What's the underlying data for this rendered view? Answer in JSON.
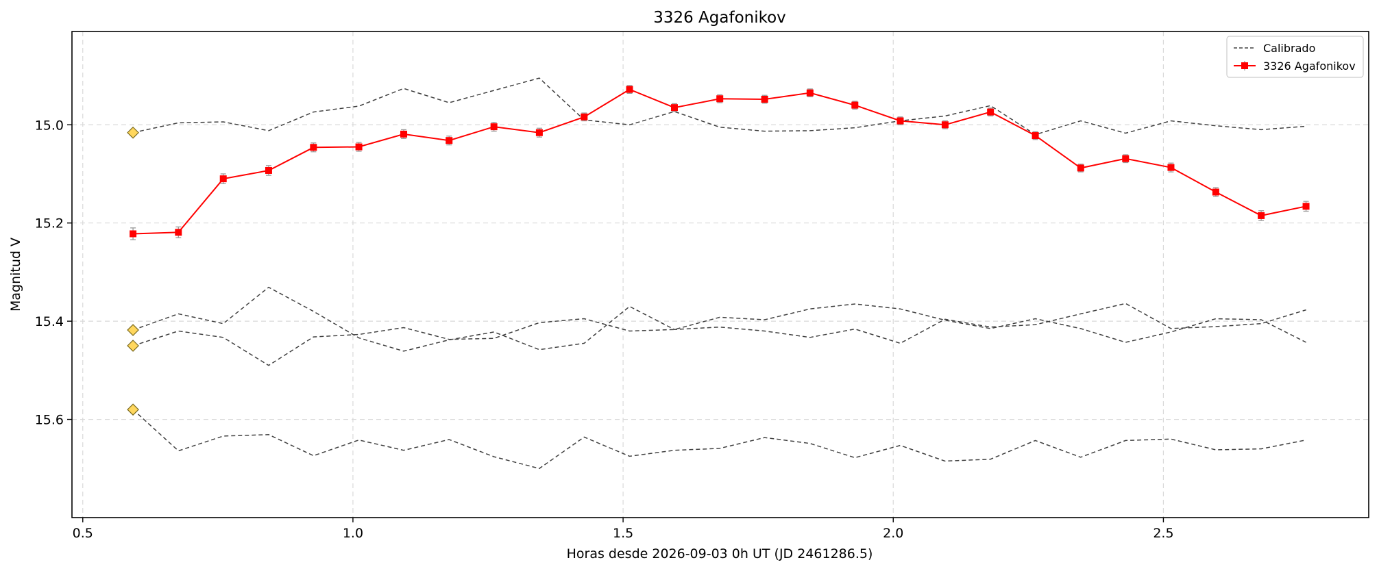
{
  "chart_data": {
    "type": "line",
    "title": "3326 Agafonikov",
    "xlabel": "Horas desde 2026-09-03 0h UT (JD 2461286.5)",
    "ylabel": "Magnitud V",
    "xlim": [
      0.48,
      2.88
    ],
    "ylim": [
      15.8,
      14.81
    ],
    "y_inverted": true,
    "xticks": [
      0.5,
      1.0,
      1.5,
      2.0,
      2.5
    ],
    "xtick_labels": [
      "0.5",
      "1.0",
      "1.5",
      "2.0",
      "2.5"
    ],
    "yticks": [
      15.0,
      15.2,
      15.4,
      15.6
    ],
    "ytick_labels": [
      "15.0",
      "15.2",
      "15.4",
      "15.6"
    ],
    "grid": true,
    "legend_position": "top-right",
    "colors": {
      "target": "#ff0000",
      "calibrated": "#404040",
      "reference_marker": "#ffd75e",
      "errorbar": "#999999"
    },
    "x": [
      0.593,
      0.677,
      0.76,
      0.844,
      0.927,
      1.011,
      1.094,
      1.178,
      1.261,
      1.345,
      1.428,
      1.512,
      1.595,
      1.679,
      1.762,
      1.846,
      1.929,
      2.013,
      2.096,
      2.18,
      2.263,
      2.347,
      2.43,
      2.514,
      2.597,
      2.681,
      2.764
    ],
    "series": [
      {
        "name": "3326 Agafonikov",
        "style": "solid-square-errorbar",
        "values": [
          15.222,
          15.219,
          15.11,
          15.093,
          15.046,
          15.045,
          15.019,
          15.032,
          15.004,
          15.016,
          14.984,
          14.928,
          14.965,
          14.947,
          14.948,
          14.935,
          14.96,
          14.992,
          15.0,
          14.974,
          15.022,
          15.088,
          15.069,
          15.087,
          15.137,
          15.185,
          15.166
        ],
        "errors": [
          0.012,
          0.011,
          0.01,
          0.01,
          0.009,
          0.009,
          0.009,
          0.009,
          0.009,
          0.009,
          0.008,
          0.008,
          0.008,
          0.008,
          0.008,
          0.008,
          0.008,
          0.008,
          0.008,
          0.008,
          0.008,
          0.008,
          0.008,
          0.009,
          0.009,
          0.01,
          0.01
        ]
      },
      {
        "name": "Calibrado",
        "style": "dashed",
        "values": [
          15.016,
          14.996,
          14.994,
          15.012,
          14.974,
          14.962,
          14.926,
          14.955,
          14.93,
          14.905,
          14.99,
          15.0,
          14.973,
          15.005,
          15.013,
          15.012,
          15.006,
          14.992,
          14.982,
          14.961,
          15.02,
          14.992,
          15.017,
          14.992,
          15.002,
          15.01,
          15.003
        ]
      },
      {
        "name": "",
        "style": "dashed",
        "values": [
          15.418,
          15.385,
          15.405,
          15.331,
          15.38,
          15.434,
          15.461,
          15.438,
          15.422,
          15.458,
          15.445,
          15.37,
          15.417,
          15.412,
          15.42,
          15.433,
          15.416,
          15.445,
          15.396,
          15.412,
          15.407,
          15.385,
          15.364,
          15.415,
          15.411,
          15.405,
          15.377
        ]
      },
      {
        "name": "",
        "style": "dashed",
        "values": [
          15.45,
          15.42,
          15.433,
          15.49,
          15.432,
          15.427,
          15.413,
          15.437,
          15.435,
          15.403,
          15.395,
          15.42,
          15.417,
          15.392,
          15.397,
          15.375,
          15.365,
          15.375,
          15.398,
          15.415,
          15.395,
          15.415,
          15.443,
          15.422,
          15.395,
          15.397,
          15.443
        ]
      },
      {
        "name": "",
        "style": "dashed",
        "values": [
          15.58,
          15.664,
          15.634,
          15.631,
          15.674,
          15.642,
          15.663,
          15.641,
          15.676,
          15.7,
          15.636,
          15.675,
          15.663,
          15.659,
          15.637,
          15.649,
          15.678,
          15.653,
          15.685,
          15.681,
          15.643,
          15.677,
          15.643,
          15.64,
          15.662,
          15.66,
          15.642
        ]
      }
    ],
    "reference_points": [
      {
        "x": 0.593,
        "y": 15.016
      },
      {
        "x": 0.593,
        "y": 15.418
      },
      {
        "x": 0.593,
        "y": 15.45
      },
      {
        "x": 0.593,
        "y": 15.58
      }
    ],
    "legend": [
      {
        "label": "Calibrado",
        "style": "dashed"
      },
      {
        "label": "3326 Agafonikov",
        "style": "solid-square-errorbar"
      }
    ]
  }
}
